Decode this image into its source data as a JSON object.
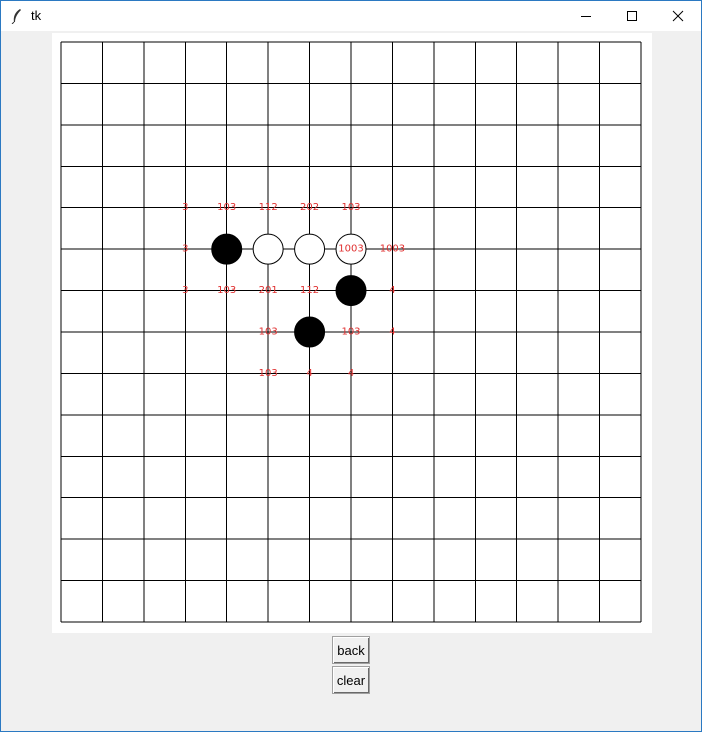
{
  "window": {
    "title": "tk"
  },
  "buttons": {
    "back": "back",
    "clear": "clear"
  },
  "board": {
    "size": 15,
    "line_color": "#000000",
    "score_color": "#e03030",
    "stones": [
      {
        "col": 4,
        "row": 5,
        "color": "black"
      },
      {
        "col": 5,
        "row": 5,
        "color": "white"
      },
      {
        "col": 6,
        "row": 5,
        "color": "white"
      },
      {
        "col": 7,
        "row": 5,
        "color": "white"
      },
      {
        "col": 7,
        "row": 6,
        "color": "black"
      },
      {
        "col": 6,
        "row": 7,
        "color": "black"
      }
    ],
    "scores": [
      {
        "col": 3,
        "row": 4,
        "text": "3"
      },
      {
        "col": 4,
        "row": 4,
        "text": "103"
      },
      {
        "col": 5,
        "row": 4,
        "text": "112"
      },
      {
        "col": 6,
        "row": 4,
        "text": "202"
      },
      {
        "col": 7,
        "row": 4,
        "text": "103"
      },
      {
        "col": 3,
        "row": 5,
        "text": "3"
      },
      {
        "col": 7,
        "row": 5,
        "text": "1003"
      },
      {
        "col": 8,
        "row": 5,
        "text": "1003"
      },
      {
        "col": 3,
        "row": 6,
        "text": "3"
      },
      {
        "col": 4,
        "row": 6,
        "text": "103"
      },
      {
        "col": 5,
        "row": 6,
        "text": "201"
      },
      {
        "col": 6,
        "row": 6,
        "text": "112"
      },
      {
        "col": 8,
        "row": 6,
        "text": "4"
      },
      {
        "col": 5,
        "row": 7,
        "text": "103"
      },
      {
        "col": 7,
        "row": 7,
        "text": "103"
      },
      {
        "col": 8,
        "row": 7,
        "text": "4"
      },
      {
        "col": 5,
        "row": 8,
        "text": "103"
      },
      {
        "col": 6,
        "row": 8,
        "text": "4"
      },
      {
        "col": 7,
        "row": 8,
        "text": "4"
      }
    ]
  }
}
